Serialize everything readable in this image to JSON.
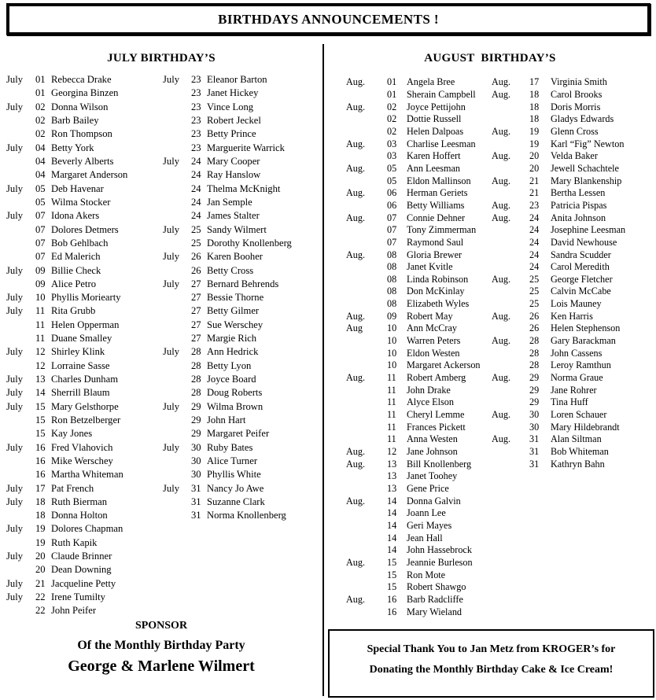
{
  "title": "BIRTHDAYS ANNOUNCEMENTS !",
  "july": {
    "heading": "JULY BIRTHDAY’S",
    "col1": [
      {
        "m": "July",
        "d": "01",
        "n": "Rebecca Drake"
      },
      {
        "m": "",
        "d": "01",
        "n": "Georgina Binzen"
      },
      {
        "m": "July",
        "d": "02",
        "n": "Donna Wilson"
      },
      {
        "m": "",
        "d": "02",
        "n": "Barb Bailey"
      },
      {
        "m": "",
        "d": "02",
        "n": "Ron Thompson"
      },
      {
        "m": "July",
        "d": "04",
        "n": "Betty York"
      },
      {
        "m": "",
        "d": "04",
        "n": "Beverly Alberts"
      },
      {
        "m": "",
        "d": "04",
        "n": "Margaret Anderson"
      },
      {
        "m": "July",
        "d": "05",
        "n": "Deb Havenar"
      },
      {
        "m": "",
        "d": "05",
        "n": "Wilma Stocker"
      },
      {
        "m": "July",
        "d": "07",
        "n": "Idona Akers"
      },
      {
        "m": "",
        "d": "07",
        "n": "Dolores Detmers"
      },
      {
        "m": "",
        "d": "07",
        "n": "Bob Gehlbach"
      },
      {
        "m": "",
        "d": "07",
        "n": "Ed Malerich"
      },
      {
        "m": "July",
        "d": "09",
        "n": "Billie Check"
      },
      {
        "m": "",
        "d": "09",
        "n": "Alice Petro"
      },
      {
        "m": "July",
        "d": "10",
        "n": "Phyllis Moriearty"
      },
      {
        "m": "July",
        "d": "11",
        "n": "Rita Grubb"
      },
      {
        "m": "",
        "d": "11",
        "n": "Helen Opperman"
      },
      {
        "m": "",
        "d": "11",
        "n": "Duane Smalley"
      },
      {
        "m": "July",
        "d": "12",
        "n": "Shirley Klink"
      },
      {
        "m": "",
        "d": "12",
        "n": "Lorraine Sasse"
      },
      {
        "m": "July",
        "d": "13",
        "n": "Charles Dunham"
      },
      {
        "m": "July",
        "d": "14",
        "n": "Sherrill Blaum"
      },
      {
        "m": "July",
        "d": "15",
        "n": "Mary Gelsthorpe"
      },
      {
        "m": "",
        "d": "15",
        "n": "Ron Betzelberger"
      },
      {
        "m": "",
        "d": "15",
        "n": "Kay Jones"
      },
      {
        "m": "July",
        "d": "16",
        "n": "Fred Vlahovich"
      },
      {
        "m": "",
        "d": "16",
        "n": "Mike Werschey"
      },
      {
        "m": "",
        "d": "16",
        "n": "Martha Whiteman"
      },
      {
        "m": "July",
        "d": "17",
        "n": "Pat French"
      },
      {
        "m": "July",
        "d": "18",
        "n": "Ruth Bierman"
      },
      {
        "m": "",
        "d": "18",
        "n": "Donna Holton"
      },
      {
        "m": "July",
        "d": "19",
        "n": "Dolores Chapman"
      },
      {
        "m": "",
        "d": "19",
        "n": "Ruth Kapik"
      },
      {
        "m": "July",
        "d": "20",
        "n": "Claude Brinner"
      },
      {
        "m": "",
        "d": "20",
        "n": "Dean Downing"
      },
      {
        "m": "July",
        "d": "21",
        "n": "Jacqueline Petty"
      },
      {
        "m": "July",
        "d": "22",
        "n": "Irene Tumilty"
      },
      {
        "m": "",
        "d": "22",
        "n": "John Peifer"
      }
    ],
    "col2": [
      {
        "m": "July",
        "d": "23",
        "n": "Eleanor Barton"
      },
      {
        "m": "",
        "d": "23",
        "n": "Janet Hickey"
      },
      {
        "m": "",
        "d": "23",
        "n": "Vince Long"
      },
      {
        "m": "",
        "d": "23",
        "n": "Robert Jeckel"
      },
      {
        "m": "",
        "d": "23",
        "n": "Betty Prince"
      },
      {
        "m": "",
        "d": "23",
        "n": "Marguerite Warrick"
      },
      {
        "m": "July",
        "d": "24",
        "n": "Mary Cooper"
      },
      {
        "m": "",
        "d": "24",
        "n": "Ray Hanslow"
      },
      {
        "m": "",
        "d": "24",
        "n": "Thelma McKnight"
      },
      {
        "m": "",
        "d": "24",
        "n": "Jan Semple"
      },
      {
        "m": "",
        "d": "24",
        "n": "James Stalter"
      },
      {
        "m": "July",
        "d": "25",
        "n": "Sandy Wilmert"
      },
      {
        "m": "",
        "d": "25",
        "n": "Dorothy Knollenberg"
      },
      {
        "m": "July",
        "d": "26",
        "n": "Karen Booher"
      },
      {
        "m": "",
        "d": "26",
        "n": "Betty Cross"
      },
      {
        "m": "July",
        "d": "27",
        "n": "Bernard Behrends"
      },
      {
        "m": "",
        "d": "27",
        "n": "Bessie Thorne"
      },
      {
        "m": "",
        "d": "27",
        "n": "Betty Gilmer"
      },
      {
        "m": "",
        "d": "27",
        "n": "Sue Werschey"
      },
      {
        "m": "",
        "d": "27",
        "n": "Margie Rich"
      },
      {
        "m": "July",
        "d": "28",
        "n": "Ann Hedrick"
      },
      {
        "m": "",
        "d": "28",
        "n": "Betty Lyon"
      },
      {
        "m": "",
        "d": "28",
        "n": "Joyce Board"
      },
      {
        "m": "",
        "d": "28",
        "n": "Doug Roberts"
      },
      {
        "m": "July",
        "d": "29",
        "n": "Wilma Brown"
      },
      {
        "m": "",
        "d": "29",
        "n": "John Hart"
      },
      {
        "m": "",
        "d": "29",
        "n": "Margaret Peifer"
      },
      {
        "m": "July",
        "d": "30",
        "n": "Ruby Bates"
      },
      {
        "m": "",
        "d": "30",
        "n": "Alice Turner"
      },
      {
        "m": "",
        "d": "30",
        "n": "Phyllis White"
      },
      {
        "m": "July",
        "d": "31",
        "n": "Nancy Jo Awe"
      },
      {
        "m": "",
        "d": "31",
        "n": "Suzanne Clark"
      },
      {
        "m": "",
        "d": "31",
        "n": "Norma Knollenberg"
      }
    ]
  },
  "august": {
    "heading": "AUGUST  BIRTHDAY’S",
    "col1": [
      {
        "m": "Aug.",
        "d": "01",
        "n": "Angela Bree"
      },
      {
        "m": "",
        "d": "01",
        "n": "Sherain Campbell"
      },
      {
        "m": "Aug.",
        "d": "02",
        "n": "Joyce Pettijohn"
      },
      {
        "m": "",
        "d": "02",
        "n": "Dottie Russell"
      },
      {
        "m": "",
        "d": "02",
        "n": "Helen Dalpoas"
      },
      {
        "m": "Aug.",
        "d": "03",
        "n": "Charlise Leesman"
      },
      {
        "m": "",
        "d": "03",
        "n": "Karen Hoffert"
      },
      {
        "m": "Aug.",
        "d": "05",
        "n": "Ann Leesman"
      },
      {
        "m": "",
        "d": "05",
        "n": "Eldon Mallinson"
      },
      {
        "m": "Aug.",
        "d": "06",
        "n": "Herman Geriets"
      },
      {
        "m": "",
        "d": "06",
        "n": "Betty Williams"
      },
      {
        "m": "Aug.",
        "d": "07",
        "n": "Connie Dehner"
      },
      {
        "m": "",
        "d": "07",
        "n": "Tony Zimmerman"
      },
      {
        "m": "",
        "d": "07",
        "n": "Raymond Saul"
      },
      {
        "m": "Aug.",
        "d": "08",
        "n": "Gloria Brewer"
      },
      {
        "m": "",
        "d": "08",
        "n": "Janet Kvitle"
      },
      {
        "m": "",
        "d": "08",
        "n": "Linda Robinson"
      },
      {
        "m": "",
        "d": "08",
        "n": "Don McKinlay"
      },
      {
        "m": "",
        "d": "08",
        "n": "Elizabeth Wyles"
      },
      {
        "m": "Aug.",
        "d": "09",
        "n": "Robert May"
      },
      {
        "m": "Aug",
        "d": "10",
        "n": "Ann McCray"
      },
      {
        "m": "",
        "d": "10",
        "n": "Warren Peters"
      },
      {
        "m": "",
        "d": "10",
        "n": "Eldon Westen"
      },
      {
        "m": "",
        "d": "10",
        "n": "Margaret Ackerson"
      },
      {
        "m": "Aug.",
        "d": "11",
        "n": "Robert Amberg"
      },
      {
        "m": "",
        "d": "11",
        "n": "John Drake"
      },
      {
        "m": "",
        "d": "11",
        "n": "Alyce Elson"
      },
      {
        "m": "",
        "d": "11",
        "n": "Cheryl Lemme"
      },
      {
        "m": "",
        "d": "11",
        "n": "Frances Pickett"
      },
      {
        "m": "",
        "d": "11",
        "n": "Anna Westen"
      },
      {
        "m": "Aug.",
        "d": "12",
        "n": "Jane Johnson"
      },
      {
        "m": "Aug.",
        "d": "13",
        "n": "Bill Knollenberg"
      },
      {
        "m": "",
        "d": "13",
        "n": "Janet Toohey"
      },
      {
        "m": "",
        "d": "13",
        "n": "Gene Price"
      },
      {
        "m": "Aug.",
        "d": "14",
        "n": "Donna Galvin"
      },
      {
        "m": "",
        "d": "14",
        "n": "Joann Lee"
      },
      {
        "m": "",
        "d": "14",
        "n": "Geri Mayes"
      },
      {
        "m": "",
        "d": "14",
        "n": "Jean Hall"
      },
      {
        "m": "",
        "d": "14",
        "n": "John Hassebrock"
      },
      {
        "m": "Aug.",
        "d": "15",
        "n": "Jeannie Burleson"
      },
      {
        "m": "",
        "d": "15",
        "n": "Ron Mote"
      },
      {
        "m": "",
        "d": "15",
        "n": "Robert Shawgo"
      },
      {
        "m": "Aug.",
        "d": "16",
        "n": "Barb Radcliffe"
      },
      {
        "m": "",
        "d": "16",
        "n": "Mary Wieland"
      }
    ],
    "col2": [
      {
        "m": "Aug.",
        "d": "17",
        "n": "Virginia Smith"
      },
      {
        "m": "Aug.",
        "d": "18",
        "n": "Carol Brooks"
      },
      {
        "m": "",
        "d": "18",
        "n": "Doris Morris"
      },
      {
        "m": "",
        "d": "18",
        "n": "Gladys Edwards"
      },
      {
        "m": "Aug.",
        "d": "19",
        "n": "Glenn Cross"
      },
      {
        "m": "",
        "d": "19",
        "n": "Karl “Fig” Newton"
      },
      {
        "m": "Aug.",
        "d": "20",
        "n": "Velda Baker"
      },
      {
        "m": "",
        "d": "20",
        "n": "Jewell Schachtele"
      },
      {
        "m": "Aug.",
        "d": "21",
        "n": "Mary Blankenship"
      },
      {
        "m": "",
        "d": "21",
        "n": "Bertha Lessen"
      },
      {
        "m": "Aug.",
        "d": "23",
        "n": "Patricia Pispas"
      },
      {
        "m": "Aug.",
        "d": "24",
        "n": "Anita Johnson"
      },
      {
        "m": "",
        "d": "24",
        "n": "Josephine Leesman"
      },
      {
        "m": "",
        "d": "24",
        "n": "David Newhouse"
      },
      {
        "m": "",
        "d": "24",
        "n": "Sandra Scudder"
      },
      {
        "m": "",
        "d": "24",
        "n": "Carol Meredith"
      },
      {
        "m": "Aug.",
        "d": "25",
        "n": "George Fletcher"
      },
      {
        "m": "",
        "d": "25",
        "n": "Calvin McCabe"
      },
      {
        "m": "",
        "d": "25",
        "n": "Lois Mauney"
      },
      {
        "m": "Aug.",
        "d": "26",
        "n": "Ken Harris"
      },
      {
        "m": "",
        "d": "26",
        "n": "Helen Stephenson"
      },
      {
        "m": "Aug.",
        "d": "28",
        "n": "Gary Barackman"
      },
      {
        "m": "",
        "d": "28",
        "n": "John Cassens"
      },
      {
        "m": "",
        "d": "28",
        "n": "Leroy Ramthun"
      },
      {
        "m": "Aug.",
        "d": "29",
        "n": "Norma Graue"
      },
      {
        "m": "",
        "d": "29",
        "n": "Jane Rohrer"
      },
      {
        "m": "",
        "d": "29",
        "n": "Tina Huff"
      },
      {
        "m": "Aug.",
        "d": "30",
        "n": "Loren Schauer"
      },
      {
        "m": "",
        "d": "30",
        "n": "Mary Hildebrandt"
      },
      {
        "m": "Aug.",
        "d": "31",
        "n": "Alan Siltman"
      },
      {
        "m": "",
        "d": "31",
        "n": "Bob Whiteman"
      },
      {
        "m": "",
        "d": "31",
        "n": "Kathryn Bahn"
      }
    ]
  },
  "sponsor": {
    "line1": "SPONSOR",
    "line2": "Of the Monthly Birthday Party",
    "line3": "George & Marlene Wilmert"
  },
  "thanks": {
    "line1": "Special Thank You to Jan Metz from KROGER’s for",
    "line2": "Donating the Monthly Birthday Cake & Ice Cream!"
  }
}
